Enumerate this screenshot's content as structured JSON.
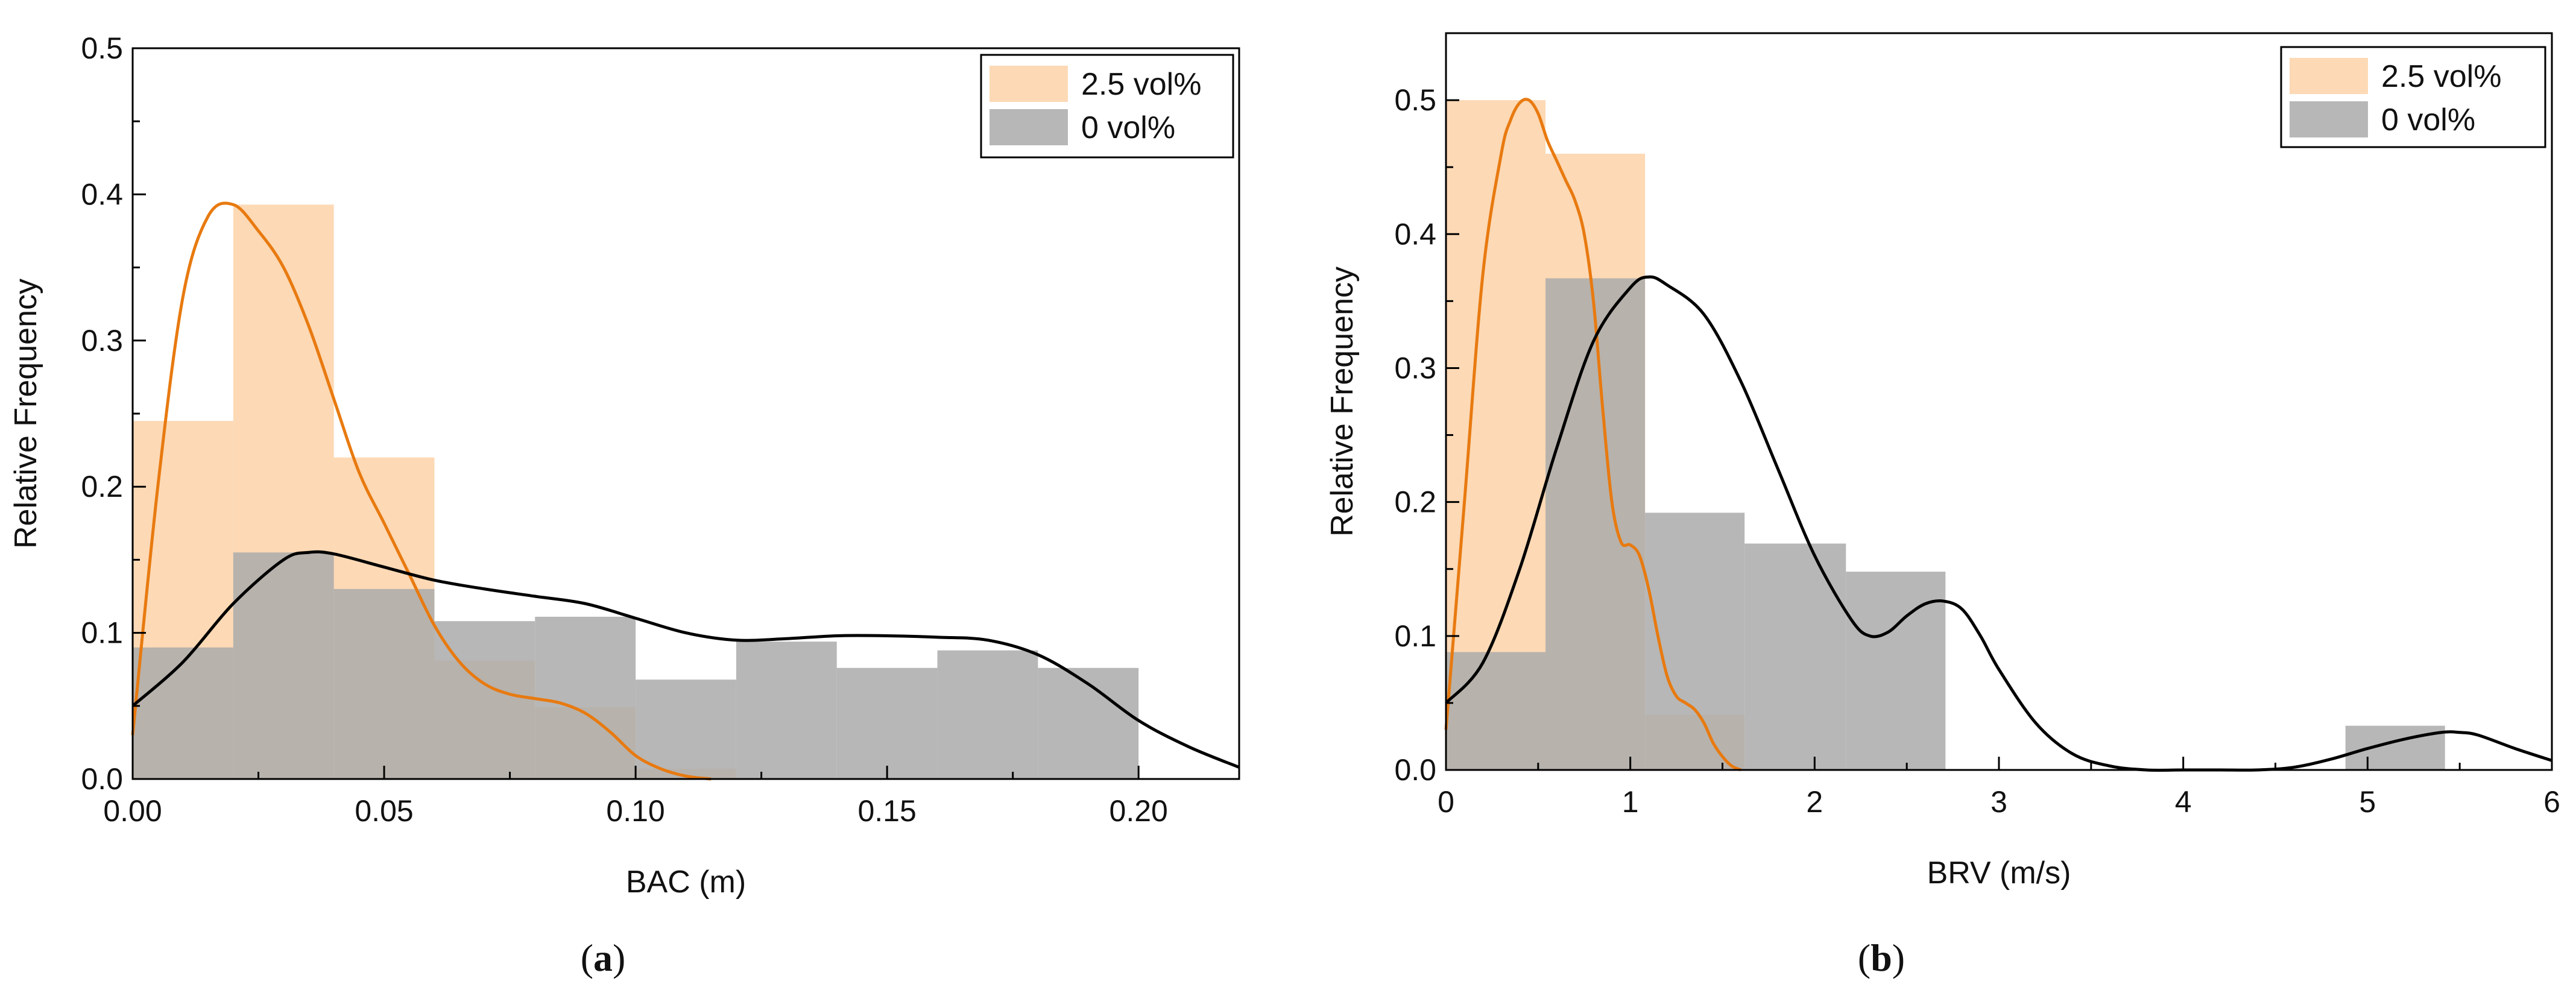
{
  "colors": {
    "bar_25": "#fdd9b5",
    "bar_25_opacity": 1,
    "bar_0": "#aaaaaa",
    "bar_0_opacity": 0.85,
    "curve_25": "#e87a10",
    "curve_0": "#000000",
    "frame": "#000000"
  },
  "chart_data": [
    {
      "type": "bar",
      "subtype": "histogram with density curves",
      "caption_letter": "a",
      "xlabel": "BAC (m)",
      "ylabel": "Relative Frequency",
      "xlim": [
        0,
        0.22
      ],
      "ylim": [
        0,
        0.5
      ],
      "xticks": [
        0.0,
        0.05,
        0.1,
        0.15,
        0.2
      ],
      "xtick_labels": [
        "0.00",
        "0.05",
        "0.10",
        "0.15",
        "0.20"
      ],
      "yticks": [
        0.0,
        0.1,
        0.2,
        0.3,
        0.4,
        0.5
      ],
      "ytick_labels": [
        "0.0",
        "0.1",
        "0.2",
        "0.3",
        "0.4",
        "0.5"
      ],
      "legend_position": "top-right",
      "series": [
        {
          "name": "2.5 vol%",
          "bins": [
            [
              0.0,
              0.02
            ],
            [
              0.02,
              0.04
            ],
            [
              0.04,
              0.06
            ],
            [
              0.06,
              0.08
            ],
            [
              0.08,
              0.1
            ],
            [
              0.1,
              0.12
            ]
          ],
          "values": [
            0.245,
            0.393,
            0.22,
            0.081,
            0.049,
            0.007
          ],
          "curve": {
            "x": [
              0.0,
              0.005,
              0.01,
              0.015,
              0.02,
              0.025,
              0.03,
              0.035,
              0.04,
              0.045,
              0.05,
              0.055,
              0.06,
              0.065,
              0.07,
              0.075,
              0.08,
              0.085,
              0.09,
              0.095,
              0.1,
              0.105,
              0.11,
              0.115
            ],
            "y": [
              0.03,
              0.2,
              0.33,
              0.385,
              0.393,
              0.375,
              0.35,
              0.31,
              0.26,
              0.21,
              0.175,
              0.14,
              0.105,
              0.08,
              0.065,
              0.058,
              0.055,
              0.052,
              0.045,
              0.032,
              0.016,
              0.007,
              0.002,
              0.0
            ]
          }
        },
        {
          "name": "0 vol%",
          "bins": [
            [
              0.0,
              0.02
            ],
            [
              0.02,
              0.04
            ],
            [
              0.04,
              0.06
            ],
            [
              0.06,
              0.08
            ],
            [
              0.08,
              0.1
            ],
            [
              0.1,
              0.12
            ],
            [
              0.12,
              0.14
            ],
            [
              0.14,
              0.16
            ],
            [
              0.16,
              0.18
            ],
            [
              0.18,
              0.2
            ]
          ],
          "values": [
            0.09,
            0.155,
            0.13,
            0.108,
            0.111,
            0.068,
            0.094,
            0.076,
            0.088,
            0.076
          ],
          "curve": {
            "x": [
              0.0,
              0.01,
              0.02,
              0.03,
              0.035,
              0.04,
              0.05,
              0.06,
              0.07,
              0.08,
              0.09,
              0.1,
              0.11,
              0.12,
              0.13,
              0.14,
              0.15,
              0.16,
              0.17,
              0.18,
              0.19,
              0.2,
              0.21,
              0.22
            ],
            "y": [
              0.05,
              0.08,
              0.12,
              0.15,
              0.155,
              0.154,
              0.145,
              0.136,
              0.13,
              0.125,
              0.12,
              0.11,
              0.1,
              0.095,
              0.096,
              0.098,
              0.098,
              0.097,
              0.095,
              0.085,
              0.065,
              0.04,
              0.022,
              0.008
            ]
          }
        }
      ]
    },
    {
      "type": "bar",
      "subtype": "histogram with density curves",
      "caption_letter": "b",
      "xlabel": "BRV (m/s)",
      "ylabel": "Relative Frequency",
      "xlim": [
        0,
        6
      ],
      "ylim": [
        0,
        0.55
      ],
      "xticks": [
        0,
        1,
        2,
        3,
        4,
        5,
        6
      ],
      "xtick_labels": [
        "0",
        "1",
        "2",
        "3",
        "4",
        "5",
        "6"
      ],
      "yticks": [
        0.0,
        0.1,
        0.2,
        0.3,
        0.4,
        0.5
      ],
      "ytick_labels": [
        "0.0",
        "0.1",
        "0.2",
        "0.3",
        "0.4",
        "0.5"
      ],
      "legend_position": "top-right",
      "series": [
        {
          "name": "2.5 vol%",
          "bins": [
            [
              0.0,
              0.54
            ],
            [
              0.54,
              1.08
            ],
            [
              1.08,
              1.62
            ]
          ],
          "values": [
            0.5,
            0.46,
            0.041
          ],
          "curve": {
            "x": [
              0.0,
              0.1,
              0.2,
              0.3,
              0.35,
              0.4,
              0.45,
              0.5,
              0.55,
              0.6,
              0.65,
              0.7,
              0.75,
              0.8,
              0.85,
              0.9,
              0.95,
              1.0,
              1.05,
              1.1,
              1.15,
              1.2,
              1.25,
              1.3,
              1.35,
              1.4,
              1.45,
              1.5,
              1.55,
              1.6
            ],
            "y": [
              0.03,
              0.2,
              0.37,
              0.46,
              0.485,
              0.498,
              0.5,
              0.49,
              0.47,
              0.455,
              0.44,
              0.425,
              0.4,
              0.35,
              0.27,
              0.2,
              0.17,
              0.168,
              0.16,
              0.135,
              0.1,
              0.07,
              0.055,
              0.05,
              0.045,
              0.035,
              0.02,
              0.01,
              0.003,
              0.0
            ]
          }
        },
        {
          "name": "0 vol%",
          "bins": [
            [
              0.0,
              0.54
            ],
            [
              0.54,
              1.08
            ],
            [
              1.08,
              1.62
            ],
            [
              1.62,
              2.17
            ],
            [
              2.17,
              2.71
            ],
            [
              4.88,
              5.42
            ]
          ],
          "values": [
            0.088,
            0.367,
            0.192,
            0.169,
            0.148,
            0.033
          ],
          "curve": {
            "x": [
              0.0,
              0.2,
              0.4,
              0.6,
              0.8,
              1.0,
              1.1,
              1.2,
              1.4,
              1.6,
              1.8,
              2.0,
              2.2,
              2.3,
              2.4,
              2.5,
              2.6,
              2.7,
              2.8,
              2.9,
              3.0,
              3.2,
              3.4,
              3.6,
              3.8,
              4.0,
              4.2,
              4.4,
              4.6,
              4.8,
              5.0,
              5.2,
              5.4,
              5.5,
              5.6,
              5.8,
              6.0
            ],
            "y": [
              0.05,
              0.08,
              0.15,
              0.24,
              0.32,
              0.36,
              0.368,
              0.362,
              0.34,
              0.29,
              0.225,
              0.16,
              0.112,
              0.1,
              0.103,
              0.115,
              0.124,
              0.126,
              0.12,
              0.1,
              0.075,
              0.035,
              0.012,
              0.003,
              0.0,
              0.0,
              0.0,
              0.0,
              0.002,
              0.008,
              0.016,
              0.023,
              0.028,
              0.028,
              0.026,
              0.016,
              0.007
            ]
          }
        }
      ]
    }
  ]
}
